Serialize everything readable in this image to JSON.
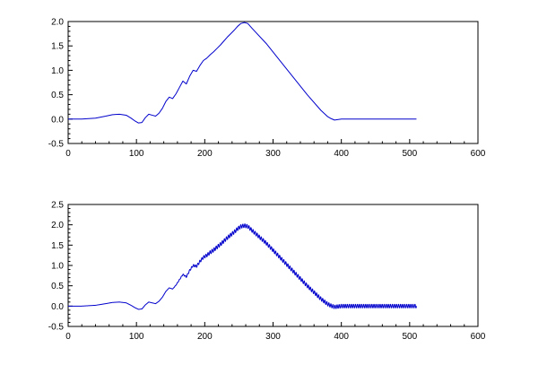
{
  "chart_data": [
    {
      "type": "line",
      "title": "",
      "xlabel": "",
      "ylabel": "",
      "xlim": [
        0,
        600
      ],
      "ylim": [
        -0.5,
        2.0
      ],
      "x_ticks": [
        0,
        100,
        200,
        300,
        400,
        500,
        600
      ],
      "y_ticks": [
        -0.5,
        0.0,
        0.5,
        1.0,
        1.5,
        2.0
      ],
      "x_tick_labels": [
        "0",
        "100",
        "200",
        "300",
        "400",
        "500",
        "600"
      ],
      "y_tick_labels": [
        "-0.5",
        "0.0",
        "0.5",
        "1.0",
        "1.5",
        "2.0"
      ],
      "grid": false,
      "series": [
        {
          "color": "#0000cc",
          "x": [
            0,
            20,
            40,
            55,
            65,
            75,
            85,
            92,
            98,
            103,
            108,
            113,
            118,
            123,
            128,
            133,
            138,
            143,
            148,
            153,
            158,
            163,
            168,
            173,
            178,
            183,
            188,
            193,
            198,
            203,
            208,
            213,
            218,
            223,
            228,
            233,
            238,
            243,
            248,
            253,
            258,
            263,
            270,
            290,
            310,
            330,
            350,
            370,
            380,
            385,
            390,
            400,
            450,
            500,
            510
          ],
          "y": [
            0.0,
            0.0,
            0.02,
            0.06,
            0.09,
            0.1,
            0.08,
            0.02,
            -0.04,
            -0.08,
            -0.07,
            0.03,
            0.1,
            0.08,
            0.06,
            0.12,
            0.22,
            0.36,
            0.45,
            0.42,
            0.52,
            0.65,
            0.78,
            0.72,
            0.88,
            1.0,
            0.98,
            1.1,
            1.2,
            1.25,
            1.32,
            1.38,
            1.45,
            1.52,
            1.6,
            1.68,
            1.75,
            1.82,
            1.9,
            1.96,
            1.98,
            1.96,
            1.85,
            1.55,
            1.2,
            0.85,
            0.5,
            0.18,
            0.05,
            0.01,
            -0.02,
            0.0,
            0.0,
            0.0,
            0.0
          ]
        }
      ]
    },
    {
      "type": "line",
      "title": "",
      "xlabel": "",
      "ylabel": "",
      "xlim": [
        0,
        600
      ],
      "ylim": [
        -0.5,
        2.5
      ],
      "x_ticks": [
        0,
        100,
        200,
        300,
        400,
        500,
        600
      ],
      "y_ticks": [
        -0.5,
        0.0,
        0.5,
        1.0,
        1.5,
        2.0,
        2.5
      ],
      "x_tick_labels": [
        "0",
        "100",
        "200",
        "300",
        "400",
        "500",
        "600"
      ],
      "y_tick_labels": [
        "-0.5",
        "0.0",
        "0.5",
        "1.0",
        "1.5",
        "2.0",
        "2.5"
      ],
      "grid": false,
      "series": [
        {
          "color": "#0000cc",
          "x": [
            0,
            20,
            40,
            55,
            65,
            75,
            85,
            92,
            98,
            103,
            108,
            113,
            118,
            123,
            128,
            133,
            138,
            143,
            148,
            153,
            158,
            163,
            168,
            173,
            178,
            183,
            188,
            193,
            198,
            203,
            208,
            213,
            218,
            223,
            228,
            233,
            238,
            243,
            248,
            253,
            258,
            263,
            270,
            290,
            310,
            330,
            350,
            370,
            380,
            385,
            390,
            400,
            450,
            500,
            510
          ],
          "y": [
            0.0,
            0.0,
            0.02,
            0.06,
            0.09,
            0.1,
            0.08,
            0.02,
            -0.04,
            -0.08,
            -0.07,
            0.03,
            0.1,
            0.08,
            0.06,
            0.12,
            0.22,
            0.36,
            0.45,
            0.42,
            0.52,
            0.65,
            0.78,
            0.72,
            0.88,
            1.0,
            0.98,
            1.1,
            1.2,
            1.25,
            1.32,
            1.38,
            1.45,
            1.52,
            1.6,
            1.68,
            1.75,
            1.82,
            1.9,
            1.96,
            1.98,
            1.96,
            1.85,
            1.55,
            1.2,
            0.85,
            0.5,
            0.18,
            0.05,
            0.01,
            -0.02,
            0.0,
            0.0,
            0.0,
            0.0
          ],
          "oscillation": {
            "start_x": 150,
            "end_x": 512,
            "period": 3,
            "amplitude": 0.05
          }
        }
      ]
    }
  ]
}
